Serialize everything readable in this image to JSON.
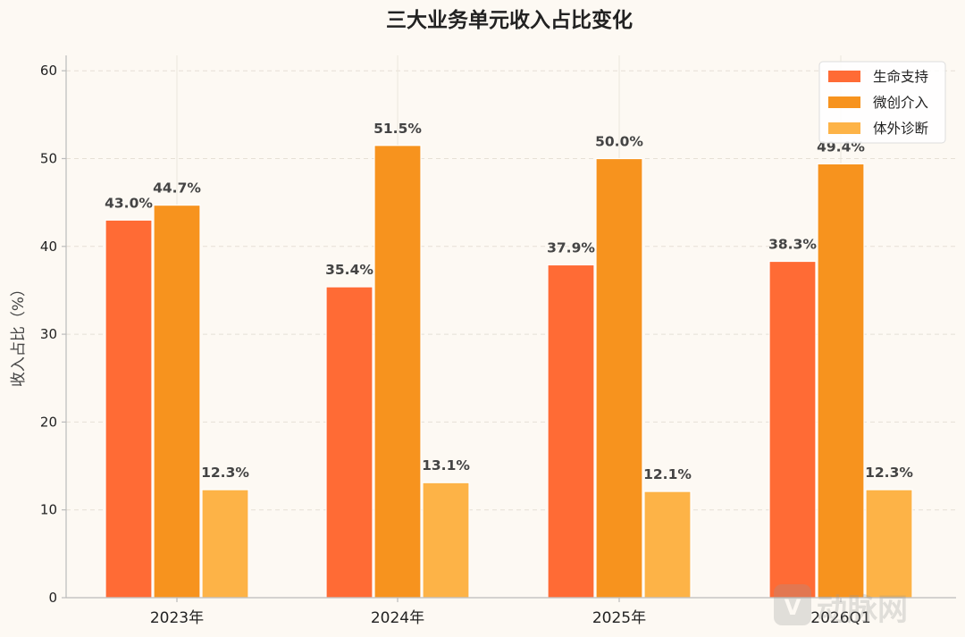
{
  "chart_data": {
    "type": "bar",
    "title": "三大业务单元收入占比变化",
    "xlabel": "",
    "ylabel": "收入占比（%）",
    "ylim": [
      0,
      62
    ],
    "yticks": [
      0,
      10,
      20,
      30,
      40,
      50,
      60
    ],
    "categories": [
      "2023年",
      "2024年",
      "2025年",
      "2026Q1"
    ],
    "series": [
      {
        "name": "生命支持",
        "color": "#ff6b35",
        "values": [
          43.0,
          35.4,
          37.9,
          38.3
        ],
        "labels": [
          "43.0%",
          "35.4%",
          "37.9%",
          "38.3%"
        ]
      },
      {
        "name": "微创介入",
        "color": "#f7931e",
        "values": [
          44.7,
          51.5,
          50.0,
          49.4
        ],
        "labels": [
          "44.7%",
          "51.5%",
          "50.0%",
          "49.4%"
        ]
      },
      {
        "name": "体外诊断",
        "color": "#fdb347",
        "values": [
          12.3,
          13.1,
          12.1,
          12.3
        ],
        "labels": [
          "12.3%",
          "13.1%",
          "12.1%",
          "12.3%"
        ]
      }
    ],
    "grid": true,
    "legend_position": "top-right"
  },
  "watermark": "动脉网"
}
